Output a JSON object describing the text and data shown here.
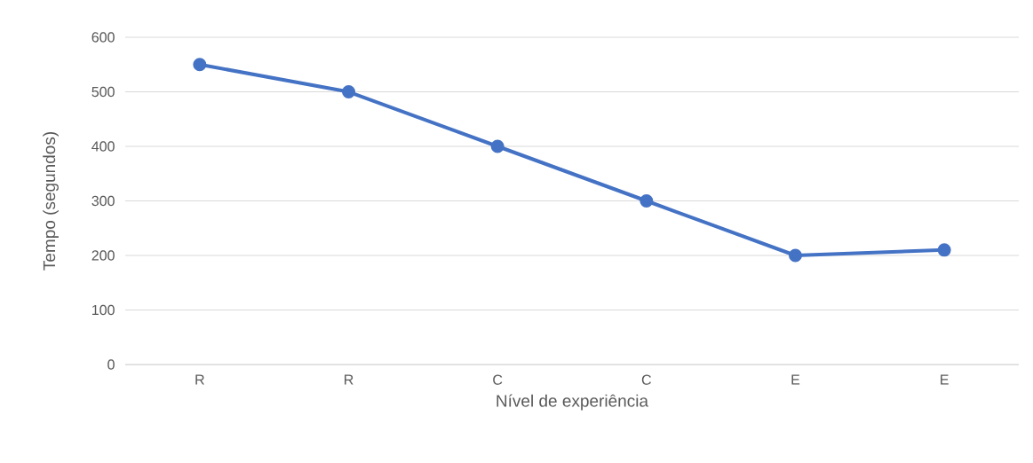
{
  "chart_data": {
    "type": "line",
    "xlabel": "Nível de experiência",
    "ylabel": "Tempo (segundos)",
    "categories": [
      "R",
      "R",
      "C",
      "C",
      "E",
      "E"
    ],
    "series": [
      {
        "color": "#4472c4",
        "values": [
          550,
          500,
          400,
          300,
          200,
          210
        ]
      }
    ],
    "ylim": [
      0,
      600
    ],
    "yticks": [
      0,
      100,
      200,
      300,
      400,
      500,
      600
    ],
    "grid": "y",
    "marker": "circle",
    "line_style": "solid"
  }
}
